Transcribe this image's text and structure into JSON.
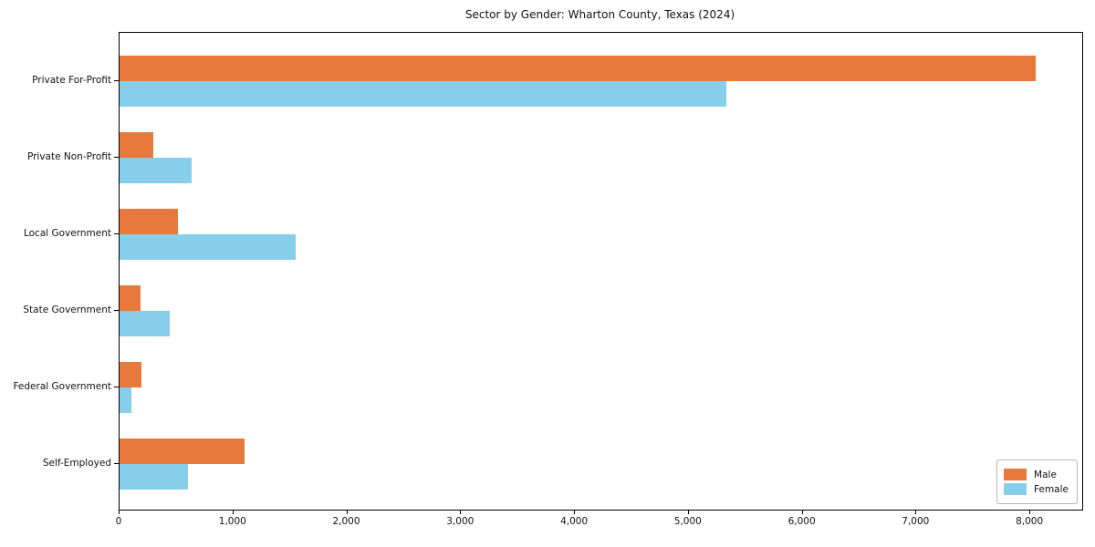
{
  "chart_data": {
    "type": "bar",
    "orientation": "horizontal",
    "title": "Sector by Gender: Wharton County, Texas (2024)",
    "categories": [
      "Private For-Profit",
      "Private Non-Profit",
      "Local Government",
      "State Government",
      "Federal Government",
      "Self-Employed"
    ],
    "series": [
      {
        "name": "Male",
        "color": "#e8793d",
        "values": [
          8050,
          300,
          510,
          180,
          190,
          1100
        ]
      },
      {
        "name": "Female",
        "color": "#87ceeb",
        "values": [
          5330,
          630,
          1550,
          440,
          100,
          600
        ]
      }
    ],
    "xlabel": "",
    "ylabel": "",
    "xlim": [
      0,
      8456
    ],
    "x_ticks": [
      0,
      1000,
      2000,
      3000,
      4000,
      5000,
      6000,
      7000,
      8000
    ],
    "x_tick_labels": [
      "0",
      "1,000",
      "2,000",
      "3,000",
      "4,000",
      "5,000",
      "6,000",
      "7,000",
      "8,000"
    ],
    "grid": false,
    "legend": {
      "position": "lower right",
      "entries": [
        "Male",
        "Female"
      ]
    }
  }
}
